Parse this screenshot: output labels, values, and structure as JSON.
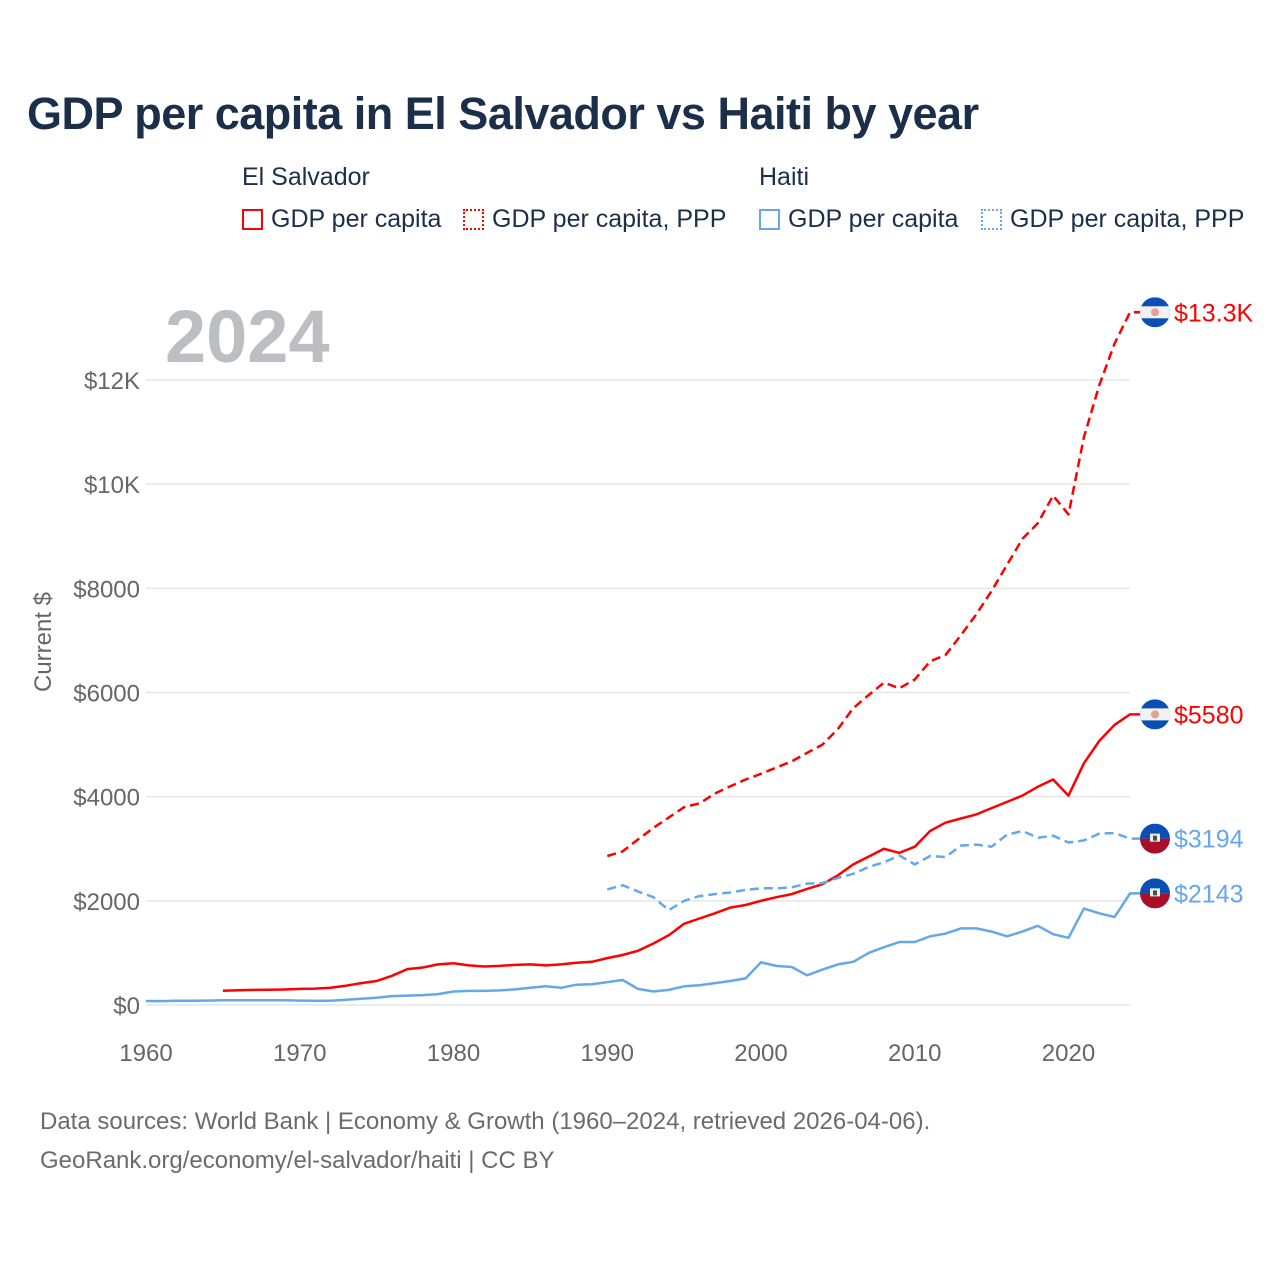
{
  "chart_data": {
    "type": "line",
    "title": "GDP per capita in El Salvador vs Haiti by year",
    "ylabel": "Current $",
    "xlabel": "",
    "year_overlay": "2024",
    "xlim": [
      1960,
      2024
    ],
    "ylim": [
      0,
      12000
    ],
    "x_ticks": [
      1960,
      1970,
      1980,
      1990,
      2000,
      2010,
      2020
    ],
    "x_tick_labels": [
      "1960",
      "1970",
      "1980",
      "1990",
      "2000",
      "2010",
      "2020"
    ],
    "y_ticks": [
      0,
      2000,
      4000,
      6000,
      8000,
      10000,
      12000
    ],
    "y_tick_labels": [
      "$0",
      "$2000",
      "$4000",
      "$6000",
      "$8000",
      "$10K",
      "$12K"
    ],
    "grid": true,
    "legend": {
      "placement": "top",
      "groups": [
        {
          "name": "El Salvador",
          "items": [
            "GDP per capita",
            "GDP per capita, PPP"
          ]
        },
        {
          "name": "Haiti",
          "items": [
            "GDP per capita",
            "GDP per capita, PPP"
          ]
        }
      ]
    },
    "series": [
      {
        "country": "El Salvador",
        "name": "GDP per capita, PPP",
        "color": "#ff0000",
        "dash": true,
        "end_label": "$13.3K",
        "flag": "el-salvador",
        "start": 1990,
        "values": [
          2860,
          2950,
          3180,
          3400,
          3600,
          3800,
          3870,
          4060,
          4200,
          4330,
          4440,
          4560,
          4680,
          4840,
          5000,
          5300,
          5700,
          5950,
          6190,
          6080,
          6250,
          6600,
          6720,
          7100,
          7500,
          7950,
          8450,
          8950,
          9250,
          9780,
          9420,
          10900,
          11900,
          12700,
          13300
        ]
      },
      {
        "country": "El Salvador",
        "name": "GDP per capita",
        "color": "#ff0000",
        "dash": false,
        "end_label": "$5580",
        "flag": "el-salvador",
        "start": 1965,
        "values": [
          275,
          285,
          290,
          292,
          298,
          310,
          315,
          330,
          370,
          420,
          460,
          560,
          690,
          720,
          780,
          800,
          760,
          740,
          750,
          770,
          780,
          760,
          780,
          810,
          830,
          900,
          960,
          1040,
          1180,
          1340,
          1560,
          1660,
          1760,
          1870,
          1920,
          2000,
          2070,
          2130,
          2230,
          2320,
          2490,
          2700,
          2850,
          3000,
          2920,
          3040,
          3340,
          3500,
          3580,
          3660,
          3780,
          3900,
          4020,
          4190,
          4330,
          4020,
          4640,
          5070,
          5380,
          5580
        ]
      },
      {
        "country": "Haiti",
        "name": "GDP per capita, PPP",
        "color": "#64a8ea",
        "dash": true,
        "end_label": "$3194",
        "flag": "haiti",
        "start": 1990,
        "values": [
          2220,
          2300,
          2180,
          2070,
          1820,
          2000,
          2090,
          2130,
          2160,
          2210,
          2240,
          2240,
          2260,
          2330,
          2340,
          2440,
          2520,
          2650,
          2740,
          2870,
          2700,
          2860,
          2840,
          3060,
          3080,
          3040,
          3270,
          3340,
          3210,
          3250,
          3120,
          3160,
          3290,
          3300,
          3194
        ]
      },
      {
        "country": "Haiti",
        "name": "GDP per capita",
        "color": "#64a8ea",
        "dash": false,
        "end_label": "$2143",
        "flag": "haiti",
        "start": 1960,
        "values": [
          77,
          75,
          80,
          80,
          85,
          90,
          92,
          90,
          90,
          92,
          85,
          80,
          82,
          100,
          120,
          140,
          170,
          180,
          190,
          210,
          260,
          270,
          270,
          280,
          300,
          330,
          360,
          330,
          390,
          400,
          440,
          480,
          310,
          260,
          290,
          360,
          380,
          420,
          460,
          510,
          820,
          750,
          730,
          570,
          680,
          780,
          830,
          1000,
          1110,
          1210,
          1210,
          1320,
          1370,
          1470,
          1470,
          1410,
          1320,
          1410,
          1520,
          1360,
          1290,
          1850,
          1760,
          1690,
          2143
        ]
      }
    ]
  },
  "footer": {
    "line1": "Data sources: World Bank | Economy & Growth (1960–2024, retrieved 2026-04-06).",
    "line2": "GeoRank.org/economy/el-salvador/haiti | CC BY"
  }
}
